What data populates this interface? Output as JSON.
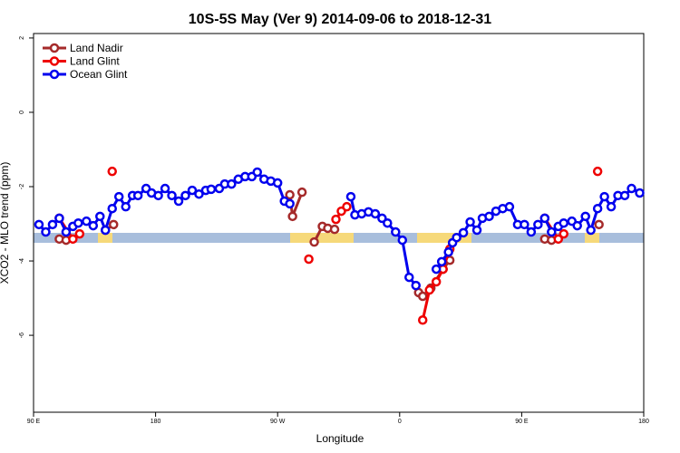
{
  "chart_data": {
    "type": "line",
    "title": "10S-5S May (Ver 9)   2014-09-06 to 2018-12-31",
    "x_label": "Longitude",
    "y_label": "XCO2 - MLO trend (ppm)",
    "xlim": [
      90,
      540
    ],
    "ylim": [
      -8.07,
      2.12
    ],
    "xticks": [
      {
        "value": 90,
        "label": "90 E"
      },
      180,
      {
        "value": 270,
        "label": "90 W"
      },
      {
        "value": 360,
        "label": "0"
      },
      {
        "value": 450,
        "label": "90 E"
      },
      {
        "value": 540,
        "label": "180"
      }
    ],
    "yticks": [
      2,
      0,
      -2,
      -4,
      -6
    ],
    "legend": "upper left",
    "series": [
      {
        "name": "Land Nadir",
        "color": "#a52a2a",
        "x": [
          109,
          114,
          null,
          143,
          149,
          null,
          279,
          281,
          288,
          null,
          297,
          303,
          307,
          312,
          null,
          374,
          377,
          383,
          392,
          397,
          null,
          467,
          472,
          null,
          507
        ],
        "values": [
          -3.41,
          -3.44,
          null,
          -3.17,
          -3.02,
          null,
          -2.22,
          -2.8,
          -2.15,
          null,
          -3.49,
          -3.07,
          -3.12,
          -3.15,
          null,
          -4.85,
          -4.95,
          -4.73,
          -4.22,
          -3.98,
          null,
          -3.41,
          -3.44,
          null,
          -3.02
        ]
      },
      {
        "name": "Land Glint",
        "color": "#ee0000",
        "x": [
          109,
          119,
          124,
          null,
          148,
          null,
          293,
          null,
          313,
          317,
          321,
          null,
          377,
          382,
          387,
          392,
          397,
          null,
          467,
          477,
          481,
          null,
          506
        ],
        "values": [
          -2.85,
          -3.41,
          -3.27,
          null,
          -1.59,
          null,
          -3.95,
          null,
          -2.88,
          -2.66,
          -2.54,
          null,
          -5.59,
          -4.78,
          -4.56,
          -4.22,
          -3.68,
          null,
          -2.85,
          -3.41,
          -3.27,
          null,
          -1.59
        ]
      },
      {
        "name": "Ocean Glint",
        "color": "#0000ee",
        "x": [
          94,
          99,
          104,
          109,
          114,
          119,
          123,
          129,
          134,
          139,
          143,
          148,
          153,
          158,
          163,
          167,
          173,
          177,
          182,
          187,
          192,
          197,
          202,
          207,
          212,
          217,
          221,
          227,
          231,
          236,
          241,
          246,
          251,
          255,
          260,
          265,
          270,
          275,
          279,
          null,
          324,
          327,
          332,
          337,
          342,
          347,
          351,
          357,
          362,
          367,
          372,
          null,
          387,
          391,
          396,
          399,
          402,
          407,
          412,
          417,
          421,
          426,
          431,
          436,
          441,
          447,
          452,
          457,
          462,
          467,
          472,
          477,
          481,
          487,
          491,
          497,
          501,
          506,
          511,
          516,
          521,
          526,
          531,
          537
        ],
        "values": [
          -3.02,
          -3.22,
          -3.02,
          -2.85,
          -3.22,
          -3.07,
          -2.98,
          -2.93,
          -3.05,
          -2.8,
          -3.17,
          -2.59,
          -2.27,
          -2.54,
          -2.24,
          -2.24,
          -2.05,
          -2.17,
          -2.24,
          -2.05,
          -2.24,
          -2.39,
          -2.24,
          -2.1,
          -2.2,
          -2.1,
          -2.07,
          -2.05,
          -1.93,
          -1.93,
          -1.8,
          -1.73,
          -1.73,
          -1.61,
          -1.8,
          -1.85,
          -1.9,
          -2.39,
          -2.46,
          null,
          -2.27,
          -2.76,
          -2.73,
          -2.68,
          -2.73,
          -2.85,
          -2.98,
          -3.22,
          -3.44,
          -4.44,
          -4.66,
          null,
          -4.22,
          -4.02,
          -3.76,
          -3.51,
          -3.37,
          -3.24,
          -2.95,
          -3.17,
          -2.85,
          -2.8,
          -2.66,
          -2.59,
          -2.54,
          -3.02,
          -3.02,
          -3.22,
          -3.02,
          -2.85,
          -3.22,
          -3.07,
          -2.98,
          -2.93,
          -3.05,
          -2.8,
          -3.17,
          -2.59,
          -2.27,
          -2.54,
          -2.24,
          -2.24,
          -2.05,
          -2.17
        ]
      }
    ]
  }
}
